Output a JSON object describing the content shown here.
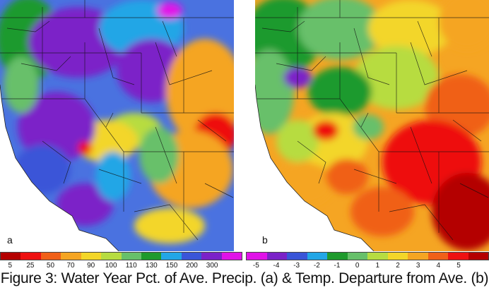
{
  "panels": [
    {
      "id": "a",
      "label": "a",
      "legend": {
        "ticks": [
          "5",
          "25",
          "50",
          "70",
          "90",
          "100",
          "110",
          "130",
          "150",
          "200",
          "300"
        ],
        "colors": [
          "#b40000",
          "#ee1111",
          "#f06018",
          "#f5a523",
          "#f3d629",
          "#b7dc41",
          "#67c06a",
          "#1f9a2d",
          "#22a6e6",
          "#3a55d8",
          "#7b22c8",
          "#e012e8"
        ]
      }
    },
    {
      "id": "b",
      "label": "b",
      "legend": {
        "ticks": [
          "-5",
          "-4",
          "-3",
          "-2",
          "-1",
          "0",
          "1",
          "2",
          "3",
          "4",
          "5"
        ],
        "colors": [
          "#e012e8",
          "#7b22c8",
          "#3a55d8",
          "#22a6e6",
          "#1f9a2d",
          "#67c06a",
          "#b7dc41",
          "#f3d629",
          "#f5a523",
          "#f06018",
          "#ee1111",
          "#b40000"
        ]
      }
    }
  ],
  "caption": "Figure 3: Water Year Pct. of Ave. Precip. (a) & Temp. Departure from Ave. (b)"
}
